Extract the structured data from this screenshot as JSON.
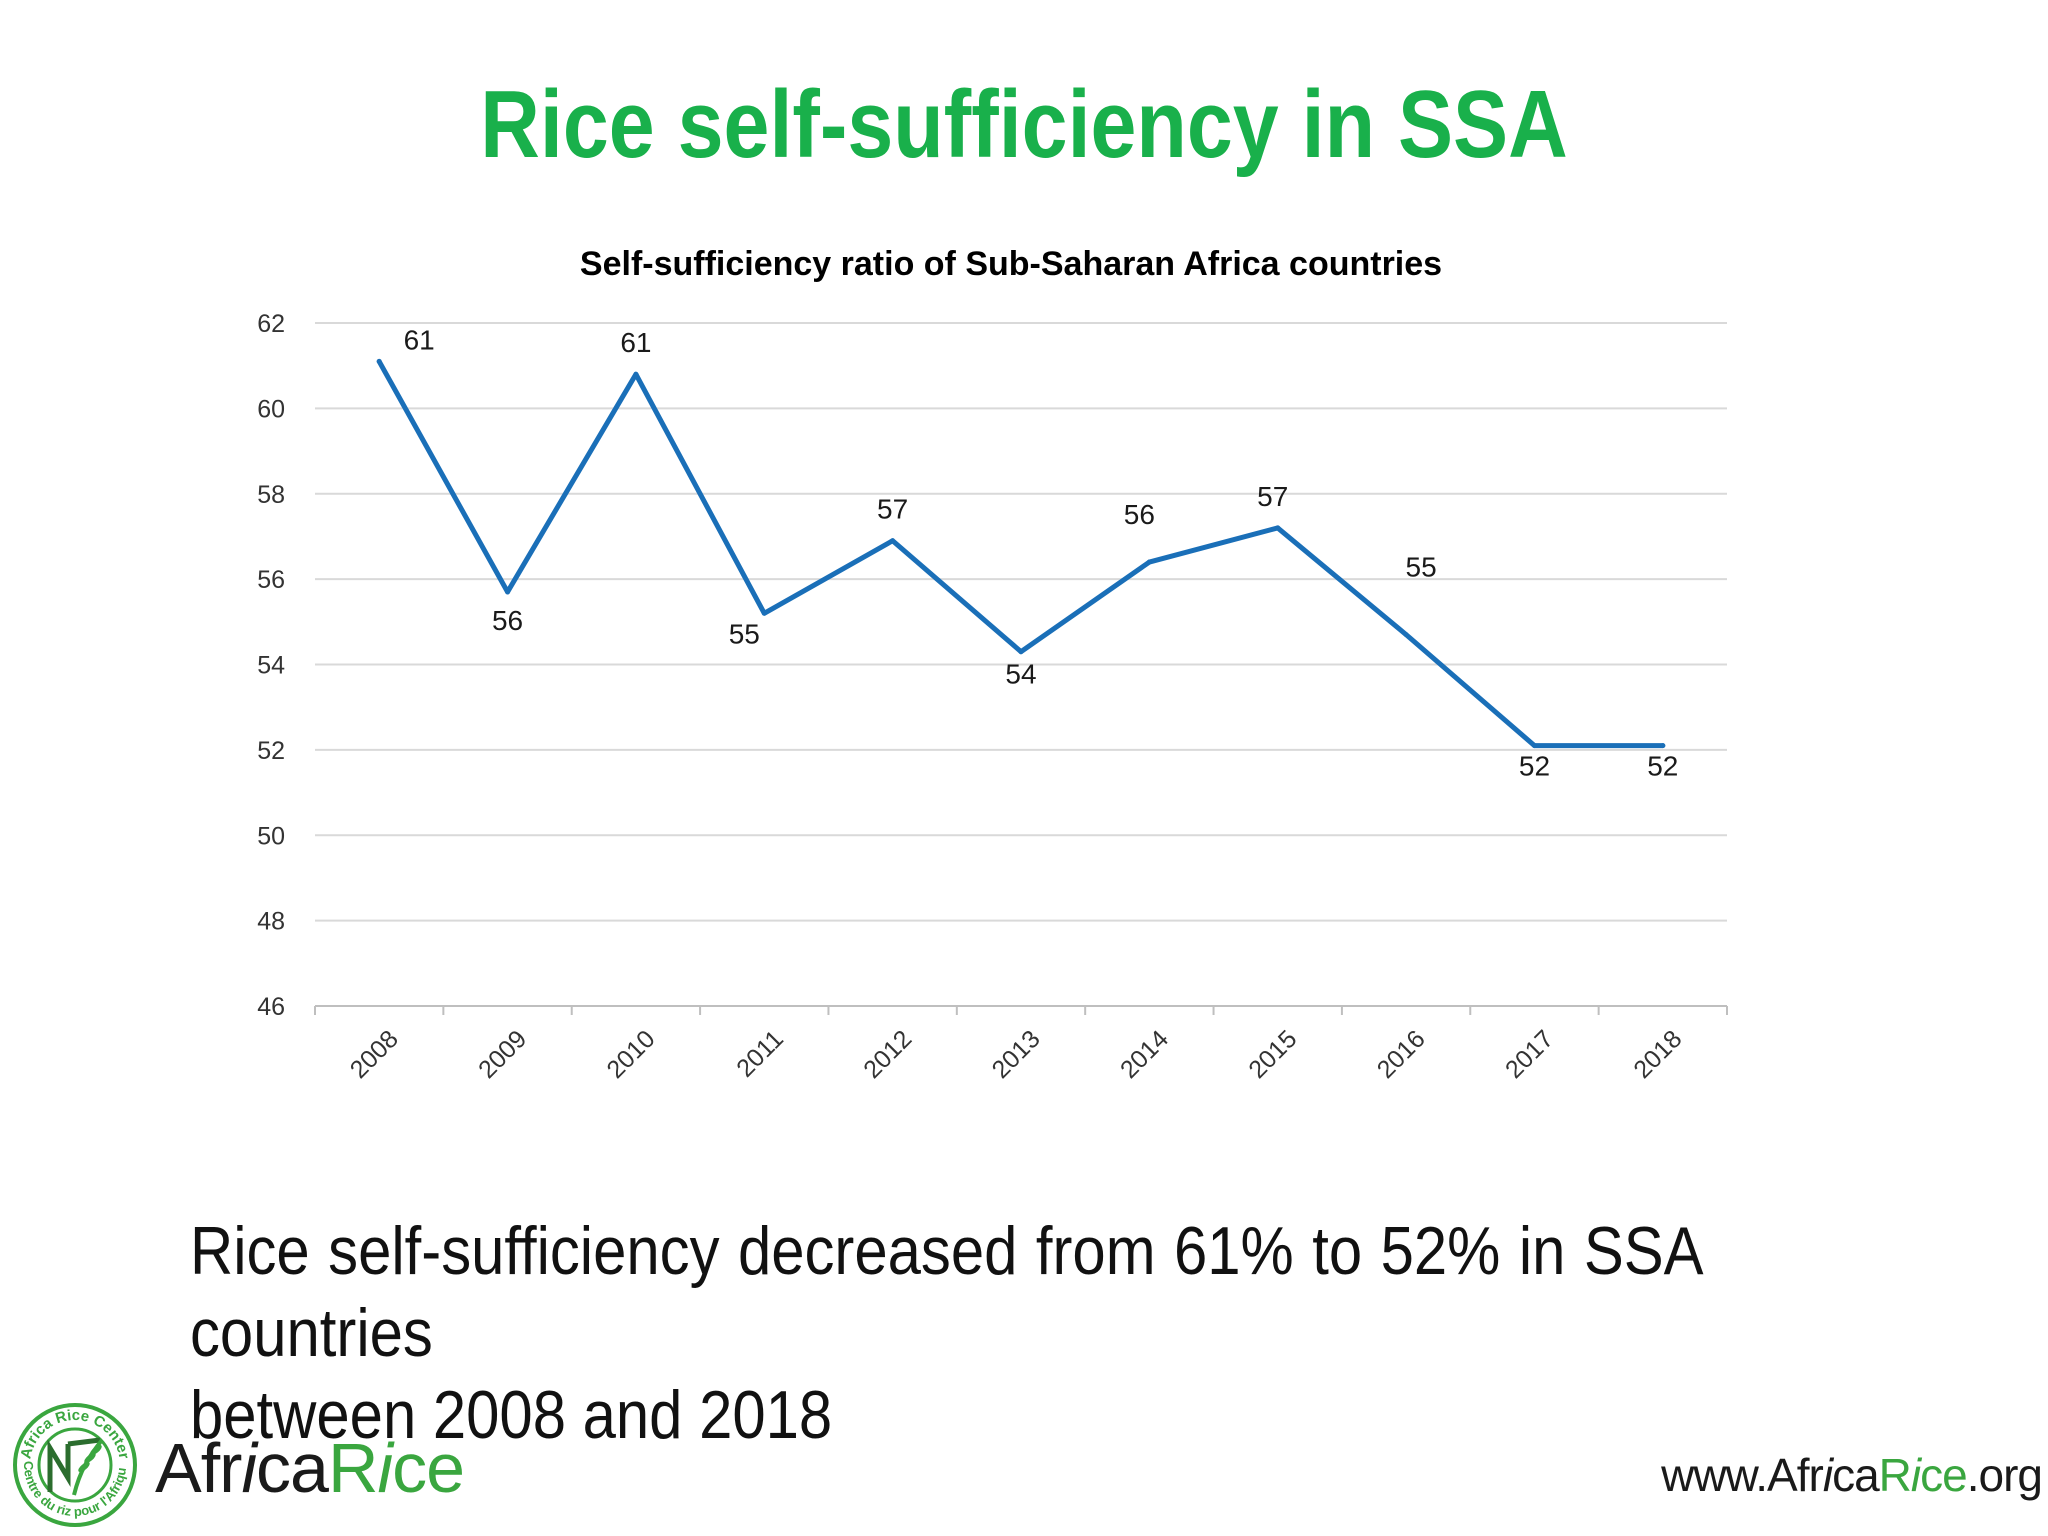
{
  "slide": {
    "title": "Rice self-sufficiency in SSA",
    "body_line1": "Rice self-sufficiency decreased from 61% to 52% in SSA countries",
    "body_line2": "between 2008 and 2018",
    "website": "www.AfricaRice.org",
    "logo_text": "AfricaRice",
    "logo_ring_top": "Africa Rice Center",
    "logo_ring_bottom": "Centre du riz pour l'Afrique"
  },
  "colors": {
    "title": "#19b04b",
    "line": "#1a6fb8",
    "brand_green": "#3aa63f",
    "grid": "#d9d9d9"
  },
  "chart_data": {
    "type": "line",
    "title": "Self-sufficiency ratio of Sub-Saharan Africa countries",
    "xlabel": "",
    "ylabel": "",
    "categories": [
      "2008",
      "2009",
      "2010",
      "2011",
      "2012",
      "2013",
      "2014",
      "2015",
      "2016",
      "2017",
      "2018"
    ],
    "series": [
      {
        "values": [
          61.1,
          55.7,
          60.8,
          55.2,
          56.9,
          54.3,
          56.4,
          57.2,
          54.7,
          52.1,
          52.1
        ],
        "labels": [
          "61",
          "56",
          "61",
          "55",
          "57",
          "54",
          "56",
          "57",
          "55",
          "52",
          "52"
        ]
      }
    ],
    "ylim": [
      46,
      62
    ],
    "yticks": [
      46,
      48,
      50,
      52,
      54,
      56,
      58,
      60,
      62
    ],
    "grid": true,
    "legend": "none"
  }
}
